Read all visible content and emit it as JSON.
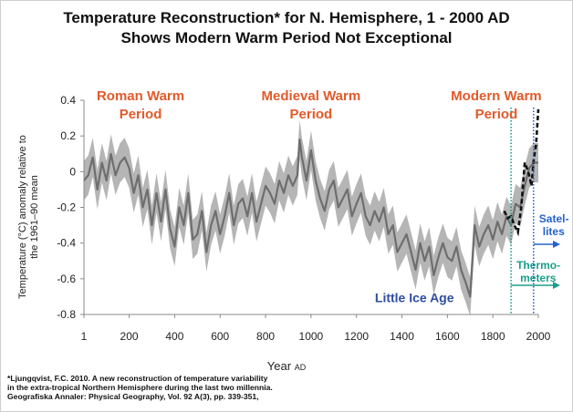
{
  "chart_data": {
    "type": "line",
    "title": "Temperature Reconstruction* for N. Hemisphere, 1 - 2000 AD",
    "subtitle": "Shows Modern Warm Period Not Exceptional",
    "xlabel": "Year",
    "xlabel_sub": "AD",
    "ylabel": "Temperature (°C) anomaly relative to the 1961–90 mean",
    "xlim": [
      1,
      2000
    ],
    "ylim": [
      -0.8,
      0.4
    ],
    "x_ticks": [
      1,
      200,
      400,
      600,
      800,
      1000,
      1200,
      1400,
      1600,
      1800,
      2000
    ],
    "x_tick_labels": [
      "1",
      "200",
      "400",
      "600",
      "800",
      "1000",
      "1200",
      "1400",
      "1600",
      "1800",
      "2000"
    ],
    "y_ticks": [
      -0.8,
      -0.6,
      -0.4,
      -0.2,
      0,
      0.2,
      0.4
    ],
    "y_tick_labels": [
      "-0.8",
      "-0.6",
      "-0.4",
      "-0.2",
      "0",
      "0.2",
      "0.4"
    ],
    "grid": false,
    "series": [
      {
        "name": "Reconstruction (decadal mean)",
        "color": "#6e6e6e",
        "x": [
          1,
          20,
          40,
          60,
          80,
          100,
          120,
          140,
          160,
          180,
          200,
          220,
          240,
          260,
          280,
          300,
          320,
          340,
          360,
          380,
          400,
          420,
          440,
          460,
          480,
          500,
          520,
          540,
          560,
          580,
          600,
          620,
          640,
          660,
          680,
          700,
          720,
          740,
          760,
          780,
          800,
          820,
          840,
          860,
          880,
          900,
          920,
          940,
          950,
          960,
          980,
          1000,
          1020,
          1040,
          1060,
          1080,
          1100,
          1120,
          1140,
          1160,
          1180,
          1200,
          1220,
          1240,
          1260,
          1280,
          1300,
          1320,
          1340,
          1360,
          1380,
          1400,
          1420,
          1440,
          1460,
          1480,
          1500,
          1520,
          1540,
          1560,
          1580,
          1600,
          1620,
          1640,
          1660,
          1680,
          1700,
          1720,
          1740,
          1760,
          1780,
          1800,
          1820,
          1840,
          1860,
          1880,
          1900,
          1920,
          1940,
          1960,
          1980,
          2000
        ],
        "values": [
          -0.05,
          -0.02,
          0.08,
          -0.1,
          0.05,
          -0.05,
          0.1,
          -0.02,
          0.05,
          0.08,
          0.02,
          -0.12,
          -0.02,
          -0.2,
          -0.1,
          -0.3,
          -0.12,
          -0.28,
          -0.1,
          -0.32,
          -0.42,
          -0.2,
          -0.3,
          -0.12,
          -0.38,
          -0.35,
          -0.22,
          -0.45,
          -0.3,
          -0.22,
          -0.35,
          -0.25,
          -0.12,
          -0.3,
          -0.18,
          -0.15,
          -0.25,
          -0.12,
          -0.28,
          -0.18,
          -0.08,
          -0.12,
          -0.18,
          -0.05,
          -0.12,
          -0.02,
          -0.08,
          -0.02,
          0.18,
          0.08,
          -0.05,
          0.12,
          -0.05,
          -0.15,
          -0.22,
          -0.1,
          -0.05,
          -0.2,
          -0.15,
          -0.1,
          -0.25,
          -0.18,
          -0.12,
          -0.25,
          -0.3,
          -0.22,
          -0.28,
          -0.2,
          -0.35,
          -0.3,
          -0.45,
          -0.4,
          -0.35,
          -0.45,
          -0.55,
          -0.4,
          -0.5,
          -0.42,
          -0.58,
          -0.48,
          -0.4,
          -0.48,
          -0.5,
          -0.42,
          -0.55,
          -0.62,
          -0.7,
          -0.3,
          -0.42,
          -0.35,
          -0.3,
          -0.38,
          -0.28,
          -0.35,
          -0.25,
          -0.3,
          -0.18,
          -0.2,
          -0.08,
          0.02,
          0.05,
          0.05
        ]
      },
      {
        "name": "Uncertainty band (2 s.e.)",
        "color": "#b5b5b5",
        "x": [
          1,
          20,
          40,
          60,
          80,
          100,
          120,
          140,
          160,
          180,
          200,
          220,
          240,
          260,
          280,
          300,
          320,
          340,
          360,
          380,
          400,
          420,
          440,
          460,
          480,
          500,
          520,
          540,
          560,
          580,
          600,
          620,
          640,
          660,
          680,
          700,
          720,
          740,
          760,
          780,
          800,
          820,
          840,
          860,
          880,
          900,
          920,
          940,
          950,
          960,
          980,
          1000,
          1020,
          1040,
          1060,
          1080,
          1100,
          1120,
          1140,
          1160,
          1180,
          1200,
          1220,
          1240,
          1260,
          1280,
          1300,
          1320,
          1340,
          1360,
          1380,
          1400,
          1420,
          1440,
          1460,
          1480,
          1500,
          1520,
          1540,
          1560,
          1580,
          1600,
          1620,
          1640,
          1660,
          1680,
          1700,
          1720,
          1740,
          1760,
          1780,
          1800,
          1820,
          1840,
          1860,
          1880,
          1900,
          1920,
          1940,
          1960,
          1980,
          2000
        ],
        "upper": [
          0.06,
          0.09,
          0.19,
          0.01,
          0.16,
          0.06,
          0.21,
          0.09,
          0.16,
          0.19,
          0.13,
          -0.01,
          0.09,
          -0.09,
          0.01,
          -0.19,
          -0.01,
          -0.17,
          0.01,
          -0.21,
          -0.31,
          -0.09,
          -0.19,
          -0.01,
          -0.27,
          -0.24,
          -0.11,
          -0.34,
          -0.19,
          -0.11,
          -0.24,
          -0.14,
          -0.01,
          -0.19,
          -0.07,
          -0.04,
          -0.14,
          -0.01,
          -0.17,
          -0.07,
          0.03,
          -0.01,
          -0.07,
          0.06,
          -0.01,
          0.09,
          0.03,
          0.09,
          0.29,
          0.19,
          0.06,
          0.23,
          0.06,
          -0.04,
          -0.11,
          0.01,
          0.06,
          -0.09,
          -0.04,
          0.01,
          -0.14,
          -0.07,
          -0.01,
          -0.14,
          -0.19,
          -0.11,
          -0.17,
          -0.09,
          -0.24,
          -0.19,
          -0.34,
          -0.29,
          -0.24,
          -0.34,
          -0.44,
          -0.29,
          -0.39,
          -0.31,
          -0.47,
          -0.37,
          -0.29,
          -0.37,
          -0.39,
          -0.31,
          -0.44,
          -0.51,
          -0.59,
          -0.19,
          -0.31,
          -0.24,
          -0.19,
          -0.27,
          -0.17,
          -0.24,
          -0.14,
          -0.19,
          -0.07,
          -0.09,
          0.03,
          0.13,
          0.16,
          0.16
        ],
        "lower": [
          -0.16,
          -0.13,
          -0.03,
          -0.21,
          -0.06,
          -0.16,
          -0.01,
          -0.13,
          -0.06,
          -0.03,
          -0.09,
          -0.23,
          -0.13,
          -0.31,
          -0.21,
          -0.41,
          -0.23,
          -0.39,
          -0.21,
          -0.43,
          -0.53,
          -0.31,
          -0.41,
          -0.23,
          -0.49,
          -0.46,
          -0.33,
          -0.56,
          -0.41,
          -0.33,
          -0.46,
          -0.36,
          -0.23,
          -0.41,
          -0.29,
          -0.26,
          -0.36,
          -0.23,
          -0.39,
          -0.29,
          -0.19,
          -0.23,
          -0.29,
          -0.16,
          -0.23,
          -0.13,
          -0.19,
          -0.13,
          0.07,
          -0.03,
          -0.16,
          0.01,
          -0.16,
          -0.26,
          -0.33,
          -0.21,
          -0.16,
          -0.31,
          -0.26,
          -0.21,
          -0.36,
          -0.29,
          -0.23,
          -0.36,
          -0.41,
          -0.33,
          -0.39,
          -0.31,
          -0.46,
          -0.41,
          -0.56,
          -0.51,
          -0.46,
          -0.56,
          -0.66,
          -0.51,
          -0.61,
          -0.53,
          -0.69,
          -0.59,
          -0.51,
          -0.59,
          -0.61,
          -0.53,
          -0.66,
          -0.73,
          -0.81,
          -0.41,
          -0.53,
          -0.46,
          -0.41,
          -0.49,
          -0.39,
          -0.46,
          -0.36,
          -0.41,
          -0.29,
          -0.31,
          -0.19,
          -0.09,
          -0.06,
          -0.06
        ]
      },
      {
        "name": "Instrumental record (dashed)",
        "color": "#111111",
        "x": [
          1850,
          1865,
          1880,
          1895,
          1910,
          1925,
          1940,
          1950,
          1960,
          1970,
          1980,
          1990,
          2000
        ],
        "values": [
          -0.22,
          -0.26,
          -0.25,
          -0.3,
          -0.34,
          -0.2,
          0.05,
          0.02,
          -0.02,
          -0.08,
          0.07,
          0.15,
          0.35
        ]
      }
    ],
    "period_labels": [
      {
        "line1": "Roman Warm",
        "line2": "Period",
        "x": 250,
        "color": "#e25a2a"
      },
      {
        "line1": "Medieval Warm",
        "line2": "Period",
        "x": 1000,
        "color": "#e25a2a"
      },
      {
        "line1": "Modern Warm",
        "line2": "Period",
        "x": 1815,
        "color": "#e25a2a"
      }
    ],
    "annotations": [
      {
        "text": "Little Ice Age",
        "x": 1455,
        "y": -0.73,
        "color": "#2f4ea3"
      }
    ],
    "markers": [
      {
        "name": "Thermometers",
        "line1": "Thermo-",
        "line2": "meters",
        "start_year": 1880,
        "color": "#1b9e8a"
      },
      {
        "name": "Satellites",
        "line1": "Satel-",
        "line2": "lites",
        "start_year": 1979,
        "color": "#2563c9"
      }
    ]
  },
  "footnote": {
    "line1": "*Ljungqvist, F.C. 2010. A new reconstruction of temperature variability",
    "line2": " in the extra-tropical Northern Hemisphere during the last two millennia.",
    "line3": "Geografiska Annaler: Physical Geography, Vol. 92 A(3), pp. 339-351,",
    "line4": "                                                       "
  }
}
